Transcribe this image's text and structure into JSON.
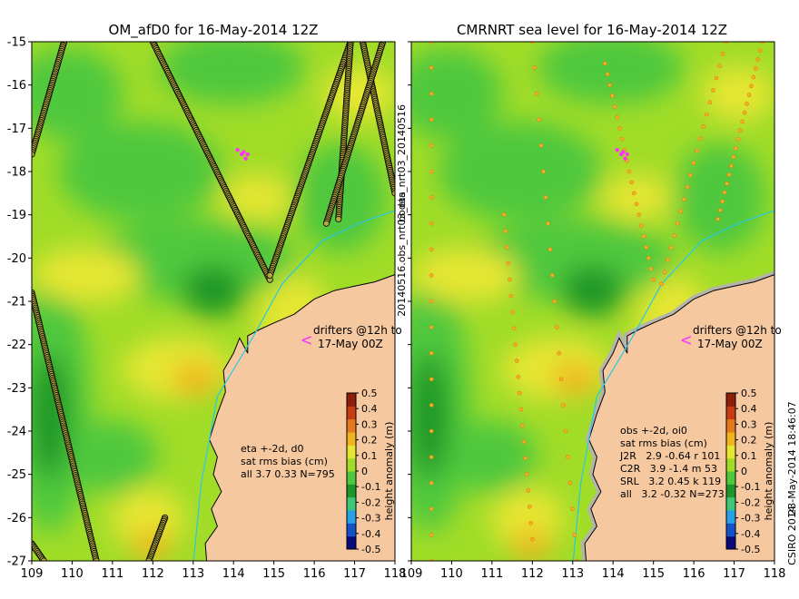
{
  "chart_data": [
    {
      "type": "heatmap",
      "title": "OM_afD0 for 16-May-2014 12Z",
      "xlim": [
        109,
        118
      ],
      "ylim": [
        -27,
        -15
      ],
      "x_ticks": [
        "109",
        "110",
        "111",
        "112",
        "113",
        "114",
        "115",
        "116",
        "117",
        "118"
      ],
      "y_ticks": [
        "-15",
        "-16",
        "-17",
        "-18",
        "-19",
        "-20",
        "-21",
        "-22",
        "-23",
        "-24",
        "-25",
        "-26",
        "-27"
      ],
      "annotations": {
        "drifters_1": "drifters @12h to",
        "drifters_2": "17-May 00Z",
        "stats_1": "eta +-2d, d0",
        "stats_2": "sat rms bias (cm)",
        "stats_3": "all 3.7 0.33 N=795"
      },
      "stats": {
        "rms": 3.7,
        "bias": 0.33,
        "N": 795
      }
    },
    {
      "type": "heatmap",
      "title": "CMRNRT sea level  for 16-May-2014 12Z",
      "xlim": [
        109,
        118
      ],
      "ylim": [
        -27,
        -15
      ],
      "x_ticks": [
        "109",
        "110",
        "111",
        "112",
        "113",
        "114",
        "115",
        "116",
        "117",
        "118"
      ],
      "y_ticks": [
        "-15",
        "-16",
        "-17",
        "-18",
        "-19",
        "-20",
        "-21",
        "-22",
        "-23",
        "-24",
        "-25",
        "-26",
        "-27"
      ],
      "annotations": {
        "drifters_1": "drifters @12h to",
        "drifters_2": "17-May 00Z",
        "stats_1": "obs +-2d, oi0",
        "stats_2": "sat rms bias (cm)",
        "stats_3": "J2R   2.9 -0.64 r 101",
        "stats_4": "C2R   3.9 -1.4 m 53",
        "stats_5": "SRL   3.2 0.45 k 119",
        "stats_6": "all   3.2 -0.32 N=273"
      },
      "stats": [
        {
          "sat": "J2R",
          "rms": 2.9,
          "bias": -0.64,
          "n": 101
        },
        {
          "sat": "C2R",
          "rms": 3.9,
          "bias": -1.4,
          "n": 53
        },
        {
          "sat": "SRL",
          "rms": 3.2,
          "bias": 0.45,
          "n": 119
        },
        {
          "sat": "all",
          "rms": 3.2,
          "bias": -0.32,
          "n": 273
        }
      ]
    }
  ],
  "colorbar": {
    "label": "height anomaly (m)",
    "ticks": [
      "0.5",
      "0.4",
      "0.3",
      "0.2",
      "0.1",
      "0",
      "-0.1",
      "-0.2",
      "-0.3",
      "-0.4",
      "-0.5"
    ],
    "range": [
      -0.5,
      0.5
    ],
    "colors": [
      "#0a0a7a",
      "#1450c8",
      "#28a0e6",
      "#3cc878",
      "#1e9628",
      "#50c83c",
      "#a0dc28",
      "#e6e632",
      "#f0b41e",
      "#e6781e",
      "#c83c14",
      "#8c1e0a"
    ]
  },
  "side_label": "bodas_nrt03_20140516",
  "side_label_2": "20140516.obs_nrt03_eta",
  "credit_1": "23-May-2014 18:46:07",
  "credit_2": "CSIRO 2014",
  "colors": {
    "land": "#f5c8a0",
    "coast_gray": "#b4b4aa",
    "river": "#28c8e6",
    "drifter": "#ff32ff"
  }
}
